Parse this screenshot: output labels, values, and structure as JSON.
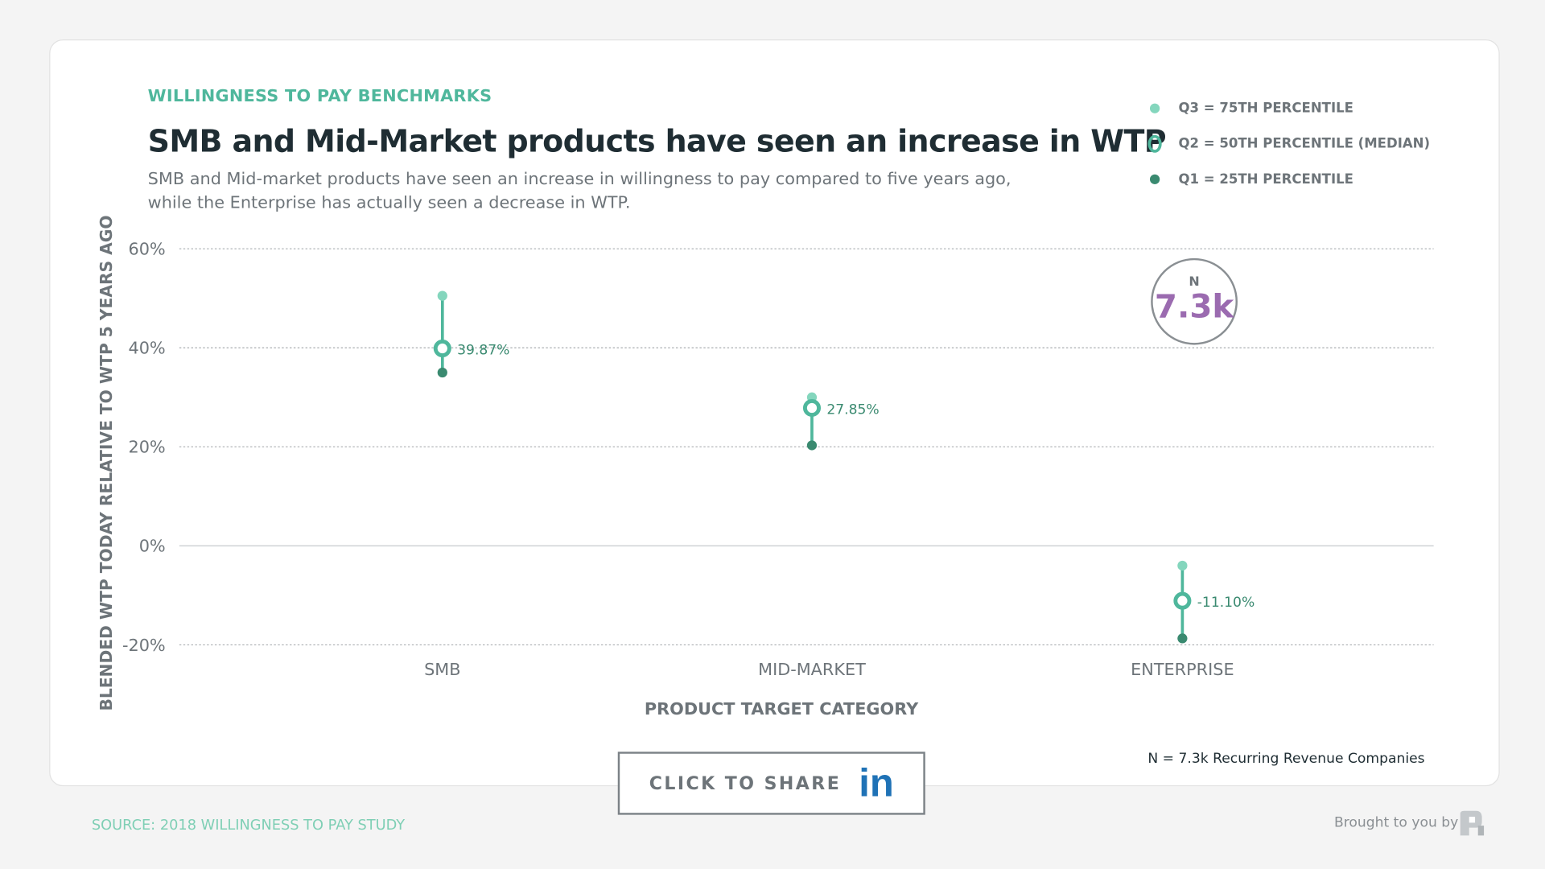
{
  "header": {
    "kicker": "WILLINGNESS TO PAY BENCHMARKS",
    "title": "SMB and Mid-Market products have seen an increase in WTP",
    "subtitle": "SMB and Mid-market products have seen an increase in willingness to pay compared to five years ago, while the Enterprise has actually seen a decrease in WTP."
  },
  "legend": {
    "items": [
      {
        "label": "Q3 = 75TH PERCENTILE",
        "color": "#84d6bd",
        "shape": "dot"
      },
      {
        "label": "Q2 = 50TH PERCENTILE (MEDIAN)",
        "color": "#4fb79c",
        "shape": "ring"
      },
      {
        "label": "Q1 = 25TH PERCENTILE",
        "color": "#3a8a70",
        "shape": "dot"
      }
    ]
  },
  "badge": {
    "label": "N",
    "value": "7.3k"
  },
  "chart_data": {
    "type": "dot-range",
    "categories": [
      "SMB",
      "MID-MARKET",
      "ENTERPRISE"
    ],
    "series": [
      {
        "name": "Q3 = 75TH PERCENTILE",
        "values": [
          50.5,
          30,
          -4
        ]
      },
      {
        "name": "Q2 = 50TH PERCENTILE (MEDIAN)",
        "values": [
          39.87,
          27.85,
          -11.1
        ]
      },
      {
        "name": "Q1 = 25TH PERCENTILE",
        "values": [
          35,
          20.3,
          -18.7
        ]
      }
    ],
    "data_labels": [
      "39.87%",
      "27.85%",
      "-11.10%"
    ],
    "xlabel": "PRODUCT TARGET CATEGORY",
    "ylabel": "BLENDED WTP TODAY RELATIVE TO WTP 5 YEARS AGO",
    "yticks": [
      "60%",
      "40%",
      "20%",
      "0%",
      "-20%"
    ],
    "ytick_values": [
      60,
      40,
      20,
      0,
      -20
    ],
    "ylim": [
      -20,
      60
    ],
    "grid": true,
    "colors": {
      "q3": "#84d6bd",
      "q2": "#4fb79c",
      "q1": "#3a8a70",
      "label": "#3a8a70"
    }
  },
  "footer": {
    "note": "N = 7.3k Recurring Revenue Companies",
    "share_label": "CLICK TO SHARE",
    "share_icon": "in",
    "source": "SOURCE: 2018 WILLINGNESS TO PAY STUDY",
    "brought": "Brought to you by"
  }
}
